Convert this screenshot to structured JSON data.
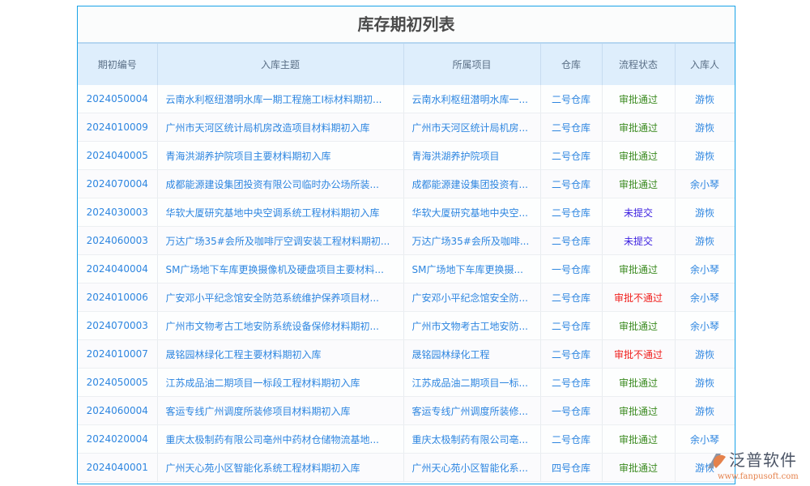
{
  "title": "库存期初列表",
  "columns": [
    "期初编号",
    "入库主题",
    "所属项目",
    "仓库",
    "流程状态",
    "入库人"
  ],
  "status_colors": {
    "审批通过": "#3a8a1f",
    "未提交": "#3b1fe0",
    "审批不通过": "#f0201e"
  },
  "rows": [
    {
      "id": "2024050004",
      "subject": "云南水利枢纽潜明水库一期工程施工I标材料期初...",
      "project": "云南水利枢纽潜明水库一...",
      "warehouse": "二号仓库",
      "status": "审批通过",
      "person": "游恢"
    },
    {
      "id": "2024010009",
      "subject": "广州市天河区统计局机房改造项目材料期初入库",
      "project": "广州市天河区统计局机房...",
      "warehouse": "二号仓库",
      "status": "审批通过",
      "person": "游恢"
    },
    {
      "id": "2024040005",
      "subject": "青海洪湖养护院项目主要材料期初入库",
      "project": "青海洪湖养护院项目",
      "warehouse": "二号仓库",
      "status": "审批通过",
      "person": "游恢"
    },
    {
      "id": "2024070004",
      "subject": "成都能源建设集团投资有限公司临时办公场所装...",
      "project": "成都能源建设集团投资有...",
      "warehouse": "二号仓库",
      "status": "审批通过",
      "person": "余小琴"
    },
    {
      "id": "2024030003",
      "subject": "华软大厦研究基地中央空调系统工程材料期初入库",
      "project": "华软大厦研究基地中央空...",
      "warehouse": "二号仓库",
      "status": "未提交",
      "person": "游恢"
    },
    {
      "id": "2024060003",
      "subject": "万达广场35#会所及咖啡厅空调安装工程材料期初...",
      "project": "万达广场35#会所及咖啡...",
      "warehouse": "二号仓库",
      "status": "未提交",
      "person": "游恢"
    },
    {
      "id": "2024040004",
      "subject": "SM广场地下车库更换摄像机及硬盘项目主要材料...",
      "project": "SM广场地下车库更换摄...",
      "warehouse": "一号仓库",
      "status": "审批通过",
      "person": "余小琴"
    },
    {
      "id": "2024010006",
      "subject": "广安邓小平纪念馆安全防范系统维护保养项目材...",
      "project": "广安邓小平纪念馆安全防...",
      "warehouse": "二号仓库",
      "status": "审批不通过",
      "person": "余小琴"
    },
    {
      "id": "2024070003",
      "subject": "广州市文物考古工地安防系统设备保修材料期初...",
      "project": "广州市文物考古工地安防...",
      "warehouse": "二号仓库",
      "status": "审批通过",
      "person": "余小琴"
    },
    {
      "id": "2024010007",
      "subject": "晟铭园林绿化工程主要材料期初入库",
      "project": "晟铭园林绿化工程",
      "warehouse": "二号仓库",
      "status": "审批不通过",
      "person": "游恢"
    },
    {
      "id": "2024050005",
      "subject": "江苏成品油二期项目一标段工程材料期初入库",
      "project": "江苏成品油二期项目一标...",
      "warehouse": "二号仓库",
      "status": "审批通过",
      "person": "游恢"
    },
    {
      "id": "2024060004",
      "subject": "客运专线广州调度所装修项目材料期初入库",
      "project": "客运专线广州调度所装修...",
      "warehouse": "一号仓库",
      "status": "审批通过",
      "person": "游恢"
    },
    {
      "id": "2024020004",
      "subject": "重庆太极制药有限公司亳州中药材仓储物流基地...",
      "project": "重庆太极制药有限公司亳...",
      "warehouse": "二号仓库",
      "status": "审批通过",
      "person": "余小琴"
    },
    {
      "id": "2024040001",
      "subject": "广州天心苑小区智能化系统工程材料期初入库",
      "project": "广州天心苑小区智能化系...",
      "warehouse": "四号仓库",
      "status": "审批通过",
      "person": "游恢"
    }
  ],
  "watermark": {
    "name": "泛普软件",
    "url": "www.fanpusoft.com"
  }
}
